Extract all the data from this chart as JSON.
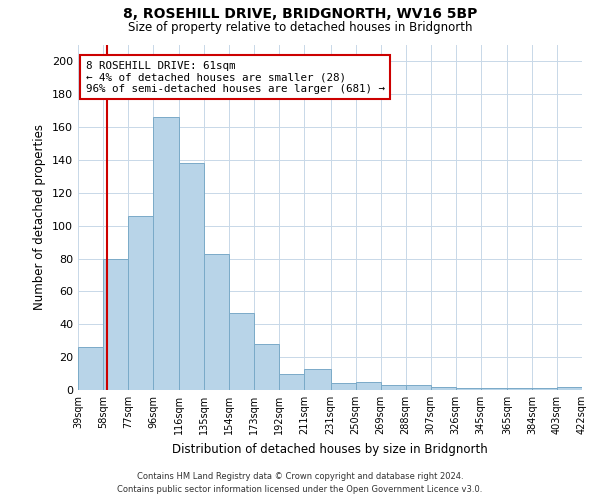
{
  "title": "8, ROSEHILL DRIVE, BRIDGNORTH, WV16 5BP",
  "subtitle": "Size of property relative to detached houses in Bridgnorth",
  "xlabel": "Distribution of detached houses by size in Bridgnorth",
  "ylabel": "Number of detached properties",
  "bar_color": "#b8d4e8",
  "bar_edge_color": "#7aaac8",
  "background_color": "#ffffff",
  "grid_color": "#c8d8e8",
  "vline_x": 61,
  "vline_color": "#cc0000",
  "annotation_text_line1": "8 ROSEHILL DRIVE: 61sqm",
  "annotation_text_line2": "← 4% of detached houses are smaller (28)",
  "annotation_text_line3": "96% of semi-detached houses are larger (681) →",
  "annotation_box_color": "#ffffff",
  "annotation_box_edge": "#cc0000",
  "footer_line1": "Contains HM Land Registry data © Crown copyright and database right 2024.",
  "footer_line2": "Contains public sector information licensed under the Open Government Licence v3.0.",
  "bin_edges": [
    39,
    58,
    77,
    96,
    116,
    135,
    154,
    173,
    192,
    211,
    231,
    250,
    269,
    288,
    307,
    326,
    345,
    365,
    384,
    403,
    422
  ],
  "bin_labels": [
    "39sqm",
    "58sqm",
    "77sqm",
    "96sqm",
    "116sqm",
    "135sqm",
    "154sqm",
    "173sqm",
    "192sqm",
    "211sqm",
    "231sqm",
    "250sqm",
    "269sqm",
    "288sqm",
    "307sqm",
    "326sqm",
    "345sqm",
    "365sqm",
    "384sqm",
    "403sqm",
    "422sqm"
  ],
  "counts": [
    26,
    80,
    106,
    166,
    138,
    83,
    47,
    28,
    10,
    13,
    4,
    5,
    3,
    3,
    2,
    1,
    1,
    1,
    1,
    2
  ],
  "ylim": [
    0,
    210
  ],
  "yticks": [
    0,
    20,
    40,
    60,
    80,
    100,
    120,
    140,
    160,
    180,
    200
  ]
}
